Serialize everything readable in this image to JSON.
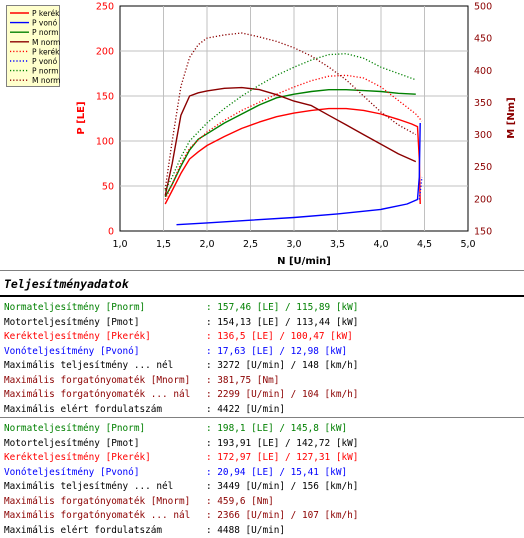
{
  "chart_data": {
    "type": "line",
    "xlabel": "N [U/min]",
    "ylabel_left": "P [LE]",
    "ylabel_right": "M [Nm]",
    "xlim": [
      1.0,
      5.0
    ],
    "ylim_left": [
      0,
      250
    ],
    "ylim_right": [
      150,
      500
    ],
    "x_ticks": [
      "1,0",
      "1,5",
      "2,0",
      "2,5",
      "3,0",
      "3,5",
      "4,0",
      "4,5",
      "5,0"
    ],
    "y_left_ticks": [
      "0",
      "50",
      "100",
      "150",
      "200",
      "250"
    ],
    "y_right_ticks": [
      "150",
      "200",
      "250",
      "300",
      "350",
      "400",
      "450",
      "500"
    ],
    "grid": true,
    "legend_placement": "top-left",
    "legend": [
      "P kerék",
      "P vonó",
      "P norm",
      "M norm",
      "P kerék",
      "P vonó",
      "P norm",
      "M norm"
    ],
    "series": [
      {
        "name": "P kerék",
        "axis": "left",
        "style": "solid",
        "color": "#ff0000",
        "x": [
          1.52,
          1.6,
          1.7,
          1.8,
          1.9,
          2.0,
          2.2,
          2.4,
          2.6,
          2.8,
          3.0,
          3.2,
          3.4,
          3.6,
          3.8,
          4.0,
          4.2,
          4.35,
          4.42,
          4.44,
          4.45
        ],
        "y": [
          30,
          45,
          64,
          80,
          88,
          95,
          105,
          114,
          121,
          127,
          131,
          134,
          136,
          136,
          134,
          130,
          124,
          119,
          116,
          80,
          30
        ]
      },
      {
        "name": "P vonó",
        "axis": "left",
        "style": "solid",
        "color": "#0000ff",
        "x": [
          1.65,
          2.0,
          2.5,
          3.0,
          3.5,
          4.0,
          4.3,
          4.42,
          4.44,
          4.45
        ],
        "y": [
          7,
          9,
          12,
          15,
          19,
          24,
          30,
          35,
          60,
          120
        ]
      },
      {
        "name": "P norm",
        "axis": "left",
        "style": "solid",
        "color": "#008000",
        "x": [
          1.52,
          1.6,
          1.7,
          1.8,
          1.9,
          2.0,
          2.2,
          2.4,
          2.6,
          2.8,
          3.0,
          3.2,
          3.4,
          3.6,
          3.8,
          4.0,
          4.2,
          4.4
        ],
        "y": [
          38,
          52,
          72,
          90,
          102,
          108,
          120,
          130,
          140,
          148,
          152,
          155,
          157,
          157,
          156,
          155,
          153,
          152
        ]
      },
      {
        "name": "M norm",
        "axis": "right",
        "style": "solid",
        "color": "#8b0000",
        "x": [
          1.52,
          1.6,
          1.7,
          1.8,
          1.9,
          2.0,
          2.2,
          2.4,
          2.6,
          2.8,
          3.0,
          3.2,
          3.4,
          3.6,
          3.8,
          4.0,
          4.2,
          4.4
        ],
        "y": [
          205,
          255,
          330,
          360,
          365,
          368,
          372,
          373,
          370,
          362,
          352,
          345,
          330,
          315,
          300,
          285,
          270,
          258
        ]
      },
      {
        "name": "P kerék",
        "axis": "left",
        "style": "dotted",
        "color": "#ff0000",
        "x": [
          1.52,
          1.6,
          1.7,
          1.8,
          2.0,
          2.2,
          2.4,
          2.6,
          2.8,
          3.0,
          3.2,
          3.4,
          3.6,
          3.8,
          4.0,
          4.2,
          4.4,
          4.47
        ],
        "y": [
          35,
          52,
          75,
          92,
          110,
          123,
          134,
          143,
          152,
          160,
          167,
          172,
          173,
          170,
          160,
          145,
          130,
          122
        ]
      },
      {
        "name": "P vonó",
        "axis": "left",
        "style": "dotted",
        "color": "#0000ff",
        "x": [
          4.44,
          4.46,
          4.47
        ],
        "y": [
          35,
          50,
          60
        ]
      },
      {
        "name": "P norm",
        "axis": "left",
        "style": "dotted",
        "color": "#008000",
        "x": [
          1.52,
          1.6,
          1.7,
          1.8,
          2.0,
          2.2,
          2.4,
          2.6,
          2.8,
          3.0,
          3.2,
          3.4,
          3.6,
          3.8,
          4.0,
          4.2,
          4.4
        ],
        "y": [
          45,
          60,
          82,
          100,
          120,
          136,
          150,
          162,
          173,
          182,
          190,
          196,
          197,
          192,
          182,
          175,
          168
        ]
      },
      {
        "name": "M norm",
        "axis": "right",
        "style": "dotted",
        "color": "#8b0000",
        "x": [
          1.52,
          1.6,
          1.7,
          1.8,
          1.9,
          2.0,
          2.2,
          2.4,
          2.6,
          2.8,
          3.0,
          3.2,
          3.4,
          3.6,
          3.8,
          4.0,
          4.2,
          4.4
        ],
        "y": [
          215,
          290,
          375,
          420,
          440,
          450,
          455,
          458,
          452,
          445,
          435,
          422,
          405,
          385,
          360,
          335,
          315,
          300
        ]
      }
    ]
  },
  "report": {
    "title": "Teljesítményadatok",
    "block1": [
      {
        "label": "Normateljesítmény [Pnorm]",
        "value": ": 157,46 [LE] / 115,89 [kW]",
        "color": "#008000"
      },
      {
        "label": "Motorteljesítmény [Pmot]",
        "value": ": 154,13 [LE] / 113,44 [kW]",
        "color": "#000000"
      },
      {
        "label": "Kerékteljesítmény [Pkerék]",
        "value": ": 136,5 [LE] / 100,47 [kW]",
        "color": "#ff0000"
      },
      {
        "label": "Vonóteljesítmény [Pvonó]",
        "value": ": 17,63 [LE] / 12,98 [kW]",
        "color": "#0000ff"
      },
      {
        "label": "Maximális teljesítmény ... nél",
        "value": ": 3272 [U/min] / 148 [km/h]",
        "color": "#000000"
      },
      {
        "label": "Maximális forgatónyomaték [Mnorm]",
        "value": ": 381,75 [Nm]",
        "color": "#8b0000"
      },
      {
        "label": "Maximális forgatónyomaték ... nál",
        "value": ": 2299 [U/min] / 104 [km/h]",
        "color": "#8b0000"
      },
      {
        "label": "Maximális elért fordulatszám",
        "value": ": 4422 [U/min]",
        "color": "#000000"
      }
    ],
    "block2": [
      {
        "label": "Normateljesítmény [Pnorm]",
        "value": ": 198,1 [LE] / 145,8 [kW]",
        "color": "#008000"
      },
      {
        "label": "Motorteljesítmény [Pmot]",
        "value": ": 193,91 [LE] / 142,72 [kW]",
        "color": "#000000"
      },
      {
        "label": "Kerékteljesítmény [Pkerék]",
        "value": ": 172,97 [LE] / 127,31 [kW]",
        "color": "#ff0000"
      },
      {
        "label": "Vonóteljesítmény [Pvonó]",
        "value": ": 20,94 [LE] / 15,41 [kW]",
        "color": "#0000ff"
      },
      {
        "label": "Maximális teljesítmény ... nél",
        "value": ": 3449 [U/min] / 156 [km/h]",
        "color": "#000000"
      },
      {
        "label": "Maximális forgatónyomaték [Mnorm]",
        "value": ": 459,6 [Nm]",
        "color": "#8b0000"
      },
      {
        "label": "Maximális forgatónyomaték ... nál",
        "value": ": 2366 [U/min] / 107 [km/h]",
        "color": "#8b0000"
      },
      {
        "label": "Maximális elért fordulatszám",
        "value": ": 4488 [U/min]",
        "color": "#000000"
      }
    ]
  }
}
